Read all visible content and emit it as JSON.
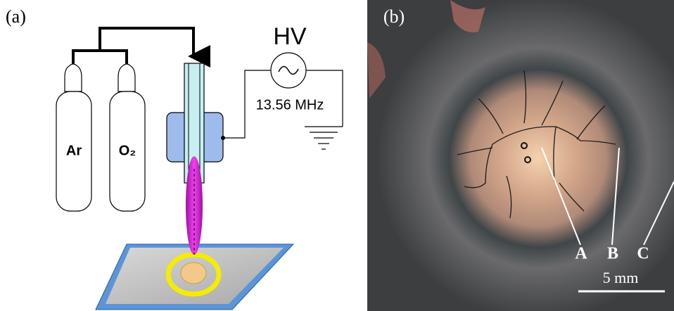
{
  "panel_a": {
    "label": "(a)",
    "cylinders": [
      "Ar",
      "O₂"
    ],
    "source": {
      "title": "HV",
      "frequency": "13.56 MHz"
    }
  },
  "panel_b": {
    "label": "(b)",
    "markers": [
      "A",
      "B",
      "C"
    ],
    "scale_bar": "5 mm"
  }
}
